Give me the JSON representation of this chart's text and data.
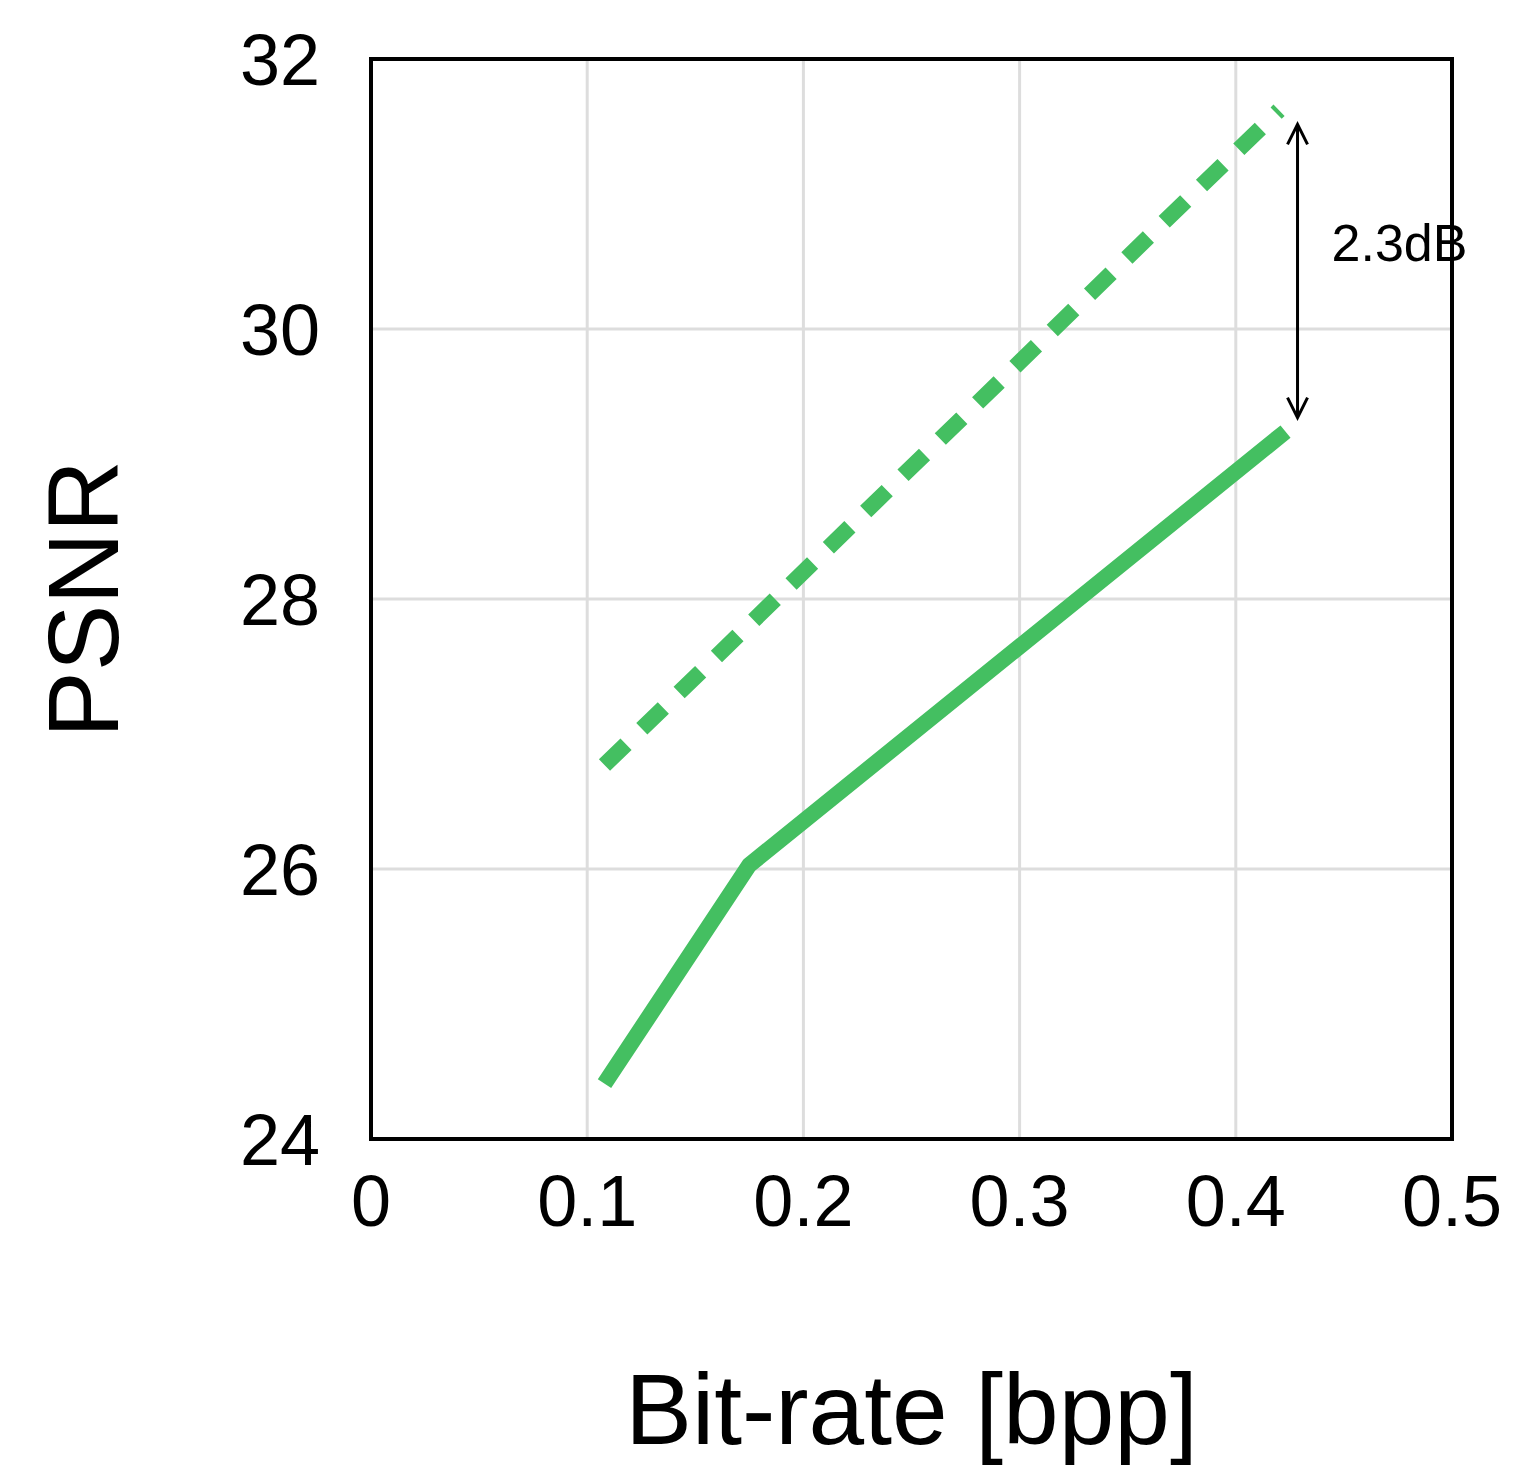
{
  "chart_data": {
    "type": "line",
    "xlabel": "Bit-rate [bpp]",
    "ylabel": "PSNR",
    "xlim": [
      0,
      0.5
    ],
    "xticks": [
      0,
      0.1,
      0.2,
      0.3,
      0.4,
      0.5
    ],
    "ylim": [
      24,
      32
    ],
    "yticks": [
      24,
      26,
      28,
      30,
      32
    ],
    "grid": true,
    "marker": "none",
    "series": [
      {
        "color": "#44bf61",
        "line_style": "solid",
        "x": [
          0.108,
          0.175,
          0.423
        ],
        "values": [
          24.41,
          26.03,
          29.24
        ]
      },
      {
        "color": "#44bf61",
        "line_style": "dashed",
        "x": [
          0.108,
          0.42
        ],
        "values": [
          26.77,
          31.62
        ]
      }
    ],
    "annotations": [
      "2.3dB"
    ]
  }
}
